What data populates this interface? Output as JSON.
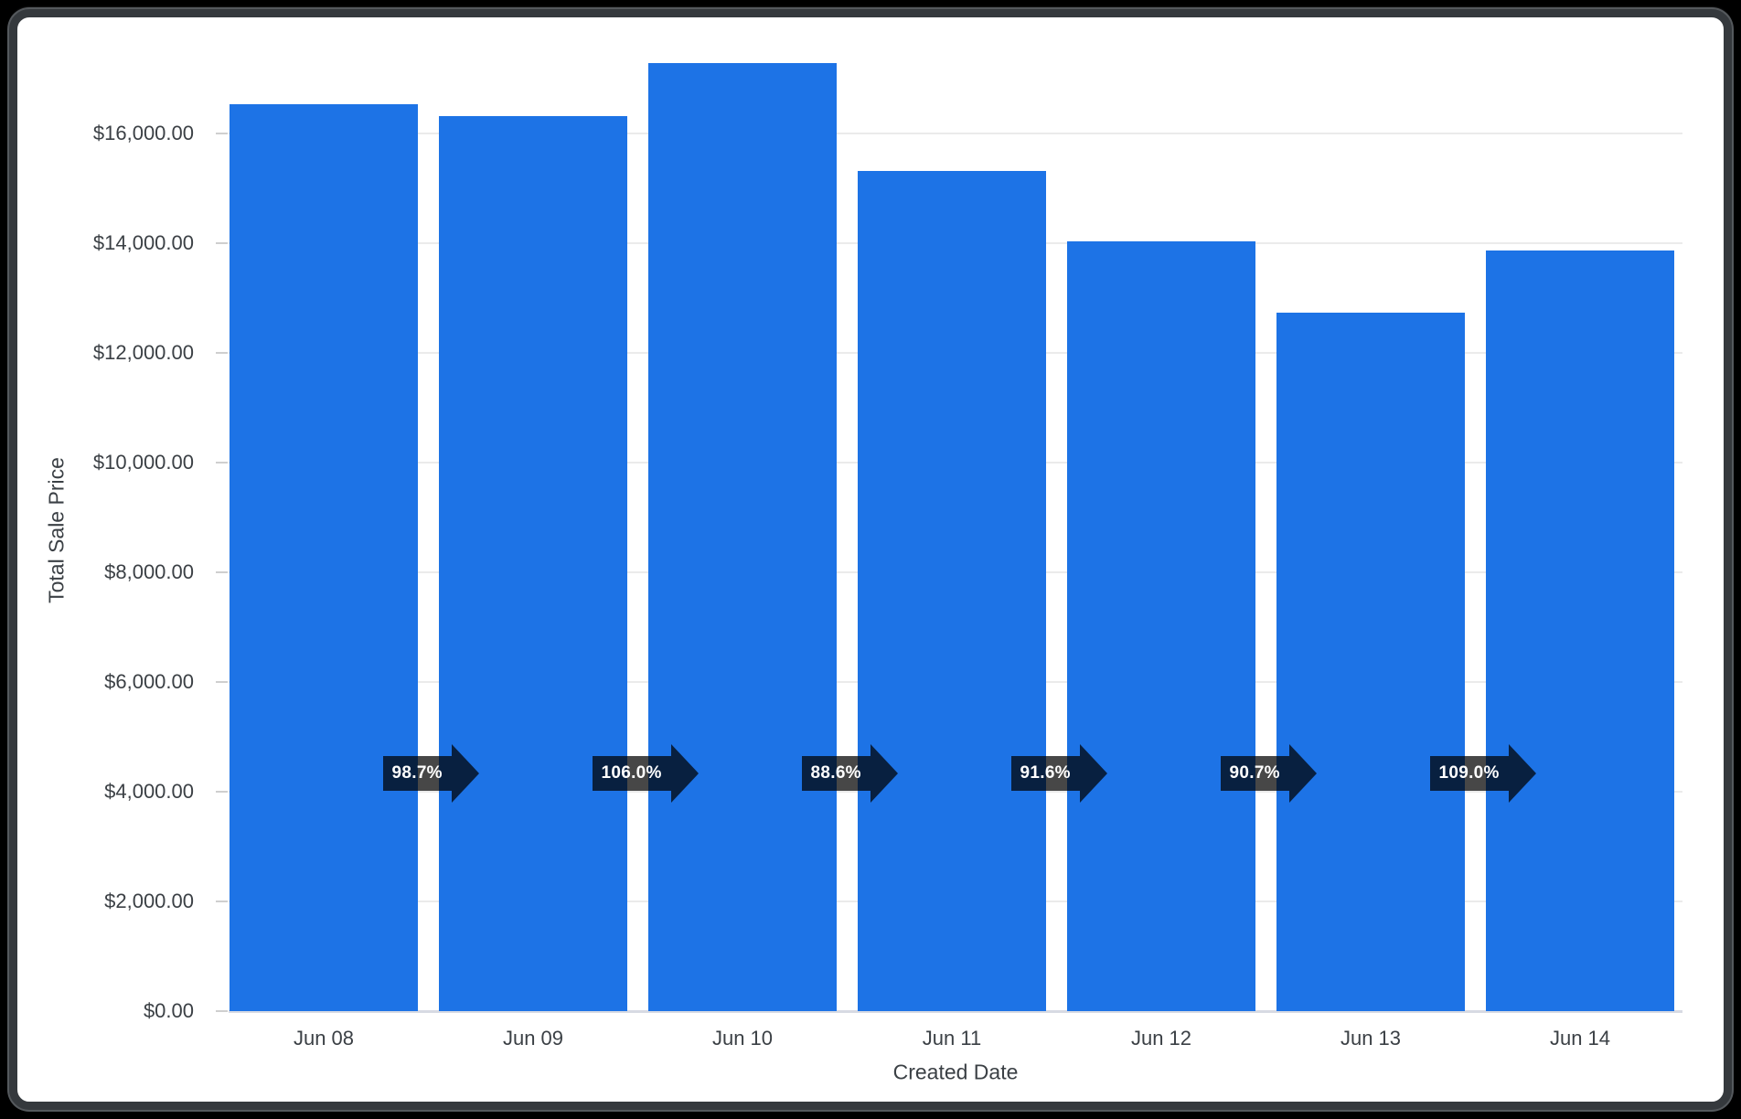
{
  "chart_data": {
    "type": "bar",
    "title": "",
    "xlabel": "Created Date",
    "ylabel": "Total Sale Price",
    "series_name": "Total Sale Price",
    "categories": [
      "Jun 08",
      "Jun 09",
      "Jun 10",
      "Jun 11",
      "Jun 12",
      "Jun 13",
      "Jun 14"
    ],
    "values": [
      16530,
      16310,
      17290,
      15320,
      14030,
      12730,
      13870
    ],
    "period_over_period_labels": [
      "98.7%",
      "106.0%",
      "88.6%",
      "91.6%",
      "90.7%",
      "109.0%"
    ],
    "y_tick_labels": [
      "$0.00",
      "$2,000.00",
      "$4,000.00",
      "$6,000.00",
      "$8,000.00",
      "$10,000.00",
      "$12,000.00",
      "$14,000.00",
      "$16,000.00"
    ],
    "y_tick_values": [
      0,
      2000,
      4000,
      6000,
      8000,
      10000,
      12000,
      14000,
      16000
    ],
    "ylim": [
      0,
      17600
    ],
    "grid": true,
    "legend": "none",
    "colors": {
      "bar": "#1d73e6",
      "badge": "rgba(0,0,0,0.72)",
      "badge_text": "#ffffff",
      "axis_text": "#3b4045",
      "gridline": "#ebebeb",
      "baseline": "#d7dae3",
      "tick": "#cfcfcf",
      "frame_border": "#35393d",
      "page_bg": "#000000",
      "chart_bg": "#ffffff"
    }
  }
}
